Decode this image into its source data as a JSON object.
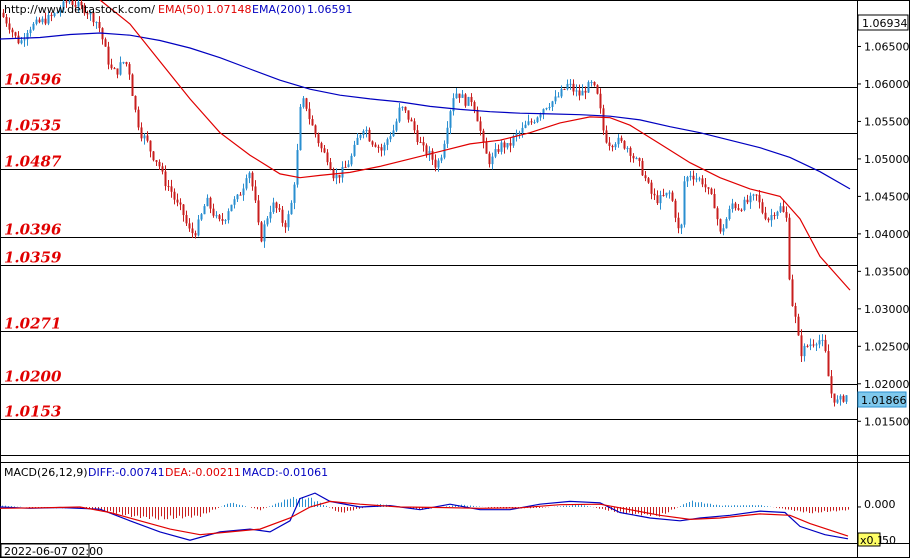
{
  "header": {
    "url": "http://www.deltastock.com/",
    "ema50_label": "EMA(50)",
    "ema50_value": "1.07148",
    "ema200_label": "EMA(200)",
    "ema200_value": "1.06591"
  },
  "price_panel": {
    "current_price": "1.06934",
    "last_close_label": "1.01866",
    "y_ticks": [
      "1.06500",
      "1.06000",
      "1.05500",
      "1.05000",
      "1.04500",
      "1.04000",
      "1.03500",
      "1.03000",
      "1.02500",
      "1.02000",
      "1.01500"
    ]
  },
  "levels": [
    {
      "label": "1.0596",
      "value": 1.0596
    },
    {
      "label": "1.0535",
      "value": 1.0535
    },
    {
      "label": "1.0487",
      "value": 1.0487
    },
    {
      "label": "1.0396",
      "value": 1.0396
    },
    {
      "label": "1.0359",
      "value": 1.0359
    },
    {
      "label": "1.0271",
      "value": 1.0271
    },
    {
      "label": "1.0200",
      "value": 1.02
    },
    {
      "label": "1.0153",
      "value": 1.0153
    }
  ],
  "macd_panel": {
    "title": "MACD(26,12,9)",
    "diff": "DIFF:-0.00741",
    "dea": "DEA:-0.00211",
    "macd": "MACD:-0.01061",
    "zero_tick": "0.000",
    "scale_badge": "x0.1",
    "scale_tick": "50"
  },
  "date_label": "2022-06-07 02:00",
  "colors": {
    "ema50": "#e00000",
    "ema200": "#0000c0",
    "bull": "#2a8fd0",
    "bear": "#c81e1e",
    "level_line": "#000000",
    "price_badge": "#7fc8ec"
  },
  "chart_data": {
    "type": "candlestick",
    "ylim": [
      1.0105,
      1.0712
    ],
    "y_ticks": [
      1.065,
      1.06,
      1.055,
      1.05,
      1.045,
      1.04,
      1.035,
      1.03,
      1.025,
      1.02,
      1.015
    ],
    "close_path": [
      [
        0,
        1.0695
      ],
      [
        8,
        1.068
      ],
      [
        16,
        1.066
      ],
      [
        20,
        1.0655
      ],
      [
        28,
        1.0675
      ],
      [
        36,
        1.068
      ],
      [
        44,
        1.0685
      ],
      [
        52,
        1.069
      ],
      [
        60,
        1.07
      ],
      [
        68,
        1.0712
      ],
      [
        76,
        1.0705
      ],
      [
        84,
        1.07
      ],
      [
        92,
        1.069
      ],
      [
        98,
        1.068
      ],
      [
        104,
        1.065
      ],
      [
        110,
        1.062
      ],
      [
        116,
        1.0615
      ],
      [
        122,
        1.063
      ],
      [
        128,
        1.0625
      ],
      [
        134,
        1.057
      ],
      [
        140,
        1.0535
      ],
      [
        146,
        1.0525
      ],
      [
        152,
        1.0505
      ],
      [
        158,
        1.0495
      ],
      [
        164,
        1.047
      ],
      [
        170,
        1.046
      ],
      [
        176,
        1.044
      ],
      [
        182,
        1.043
      ],
      [
        188,
        1.0405
      ],
      [
        194,
        1.04
      ],
      [
        200,
        1.042
      ],
      [
        206,
        1.0445
      ],
      [
        212,
        1.043
      ],
      [
        218,
        1.0415
      ],
      [
        224,
        1.042
      ],
      [
        230,
        1.044
      ],
      [
        236,
        1.0445
      ],
      [
        242,
        1.046
      ],
      [
        248,
        1.049
      ],
      [
        254,
        1.045
      ],
      [
        260,
        1.039
      ],
      [
        266,
        1.042
      ],
      [
        272,
        1.044
      ],
      [
        278,
        1.043
      ],
      [
        284,
        1.041
      ],
      [
        290,
        1.043
      ],
      [
        296,
        1.049
      ],
      [
        300,
        1.0565
      ],
      [
        304,
        1.058
      ],
      [
        310,
        1.055
      ],
      [
        316,
        1.053
      ],
      [
        322,
        1.051
      ],
      [
        328,
        1.05
      ],
      [
        334,
        1.0475
      ],
      [
        340,
        1.048
      ],
      [
        346,
        1.049
      ],
      [
        352,
        1.0505
      ],
      [
        358,
        1.053
      ],
      [
        364,
        1.0545
      ],
      [
        370,
        1.0525
      ],
      [
        376,
        1.052
      ],
      [
        382,
        1.051
      ],
      [
        388,
        1.053
      ],
      [
        394,
        1.054
      ],
      [
        400,
        1.057
      ],
      [
        406,
        1.056
      ],
      [
        412,
        1.0545
      ],
      [
        418,
        1.0525
      ],
      [
        424,
        1.051
      ],
      [
        430,
        1.0505
      ],
      [
        436,
        1.049
      ],
      [
        442,
        1.051
      ],
      [
        448,
        1.0555
      ],
      [
        454,
        1.059
      ],
      [
        460,
        1.0585
      ],
      [
        466,
        1.0575
      ],
      [
        472,
        1.058
      ],
      [
        478,
        1.055
      ],
      [
        484,
        1.051
      ],
      [
        490,
        1.0495
      ],
      [
        496,
        1.051
      ],
      [
        502,
        1.052
      ],
      [
        508,
        1.0515
      ],
      [
        514,
        1.053
      ],
      [
        520,
        1.0535
      ],
      [
        526,
        1.0545
      ],
      [
        532,
        1.055
      ],
      [
        538,
        1.056
      ],
      [
        544,
        1.057
      ],
      [
        550,
        1.0575
      ],
      [
        556,
        1.058
      ],
      [
        562,
        1.059
      ],
      [
        568,
        1.06
      ],
      [
        574,
        1.059
      ],
      [
        580,
        1.0585
      ],
      [
        586,
        1.0595
      ],
      [
        592,
        1.06
      ],
      [
        598,
        1.058
      ],
      [
        604,
        1.053
      ],
      [
        610,
        1.052
      ],
      [
        616,
        1.0525
      ],
      [
        622,
        1.052
      ],
      [
        628,
        1.0515
      ],
      [
        634,
        1.05
      ],
      [
        640,
        1.049
      ],
      [
        646,
        1.047
      ],
      [
        652,
        1.045
      ],
      [
        658,
        1.0445
      ],
      [
        664,
        1.045
      ],
      [
        670,
        1.0455
      ],
      [
        676,
        1.042
      ],
      [
        680,
        1.039
      ],
      [
        684,
        1.047
      ],
      [
        690,
        1.048
      ],
      [
        696,
        1.0475
      ],
      [
        702,
        1.047
      ],
      [
        708,
        1.0455
      ],
      [
        714,
        1.044
      ],
      [
        720,
        1.04
      ],
      [
        726,
        1.042
      ],
      [
        732,
        1.044
      ],
      [
        738,
        1.0435
      ],
      [
        744,
        1.044
      ],
      [
        750,
        1.0445
      ],
      [
        756,
        1.045
      ],
      [
        762,
        1.043
      ],
      [
        768,
        1.042
      ],
      [
        774,
        1.043
      ],
      [
        780,
        1.0435
      ],
      [
        786,
        1.042
      ],
      [
        790,
        1.032
      ],
      [
        796,
        1.028
      ],
      [
        800,
        1.024
      ],
      [
        806,
        1.025
      ],
      [
        812,
        1.0255
      ],
      [
        818,
        1.026
      ],
      [
        824,
        1.025
      ],
      [
        830,
        1.019
      ],
      [
        836,
        1.0175
      ],
      [
        842,
        1.018
      ],
      [
        848,
        1.0187
      ]
    ],
    "ema50_path": [
      [
        100,
        1.0712
      ],
      [
        130,
        1.068
      ],
      [
        160,
        1.063
      ],
      [
        190,
        1.058
      ],
      [
        220,
        1.0535
      ],
      [
        250,
        1.0505
      ],
      [
        280,
        1.048
      ],
      [
        300,
        1.0475
      ],
      [
        320,
        1.0478
      ],
      [
        350,
        1.0482
      ],
      [
        380,
        1.049
      ],
      [
        410,
        1.05
      ],
      [
        440,
        1.051
      ],
      [
        470,
        1.052
      ],
      [
        500,
        1.0525
      ],
      [
        530,
        1.0535
      ],
      [
        560,
        1.0548
      ],
      [
        590,
        1.0556
      ],
      [
        610,
        1.0555
      ],
      [
        630,
        1.0545
      ],
      [
        660,
        1.052
      ],
      [
        690,
        1.0495
      ],
      [
        720,
        1.0475
      ],
      [
        750,
        1.046
      ],
      [
        780,
        1.045
      ],
      [
        800,
        1.042
      ],
      [
        820,
        1.037
      ],
      [
        850,
        1.0325
      ]
    ],
    "ema200_path": [
      [
        0,
        1.066
      ],
      [
        40,
        1.0662
      ],
      [
        70,
        1.0666
      ],
      [
        100,
        1.0668
      ],
      [
        130,
        1.0665
      ],
      [
        160,
        1.0658
      ],
      [
        190,
        1.0648
      ],
      [
        220,
        1.0635
      ],
      [
        250,
        1.062
      ],
      [
        280,
        1.0605
      ],
      [
        310,
        1.0593
      ],
      [
        340,
        1.0585
      ],
      [
        370,
        1.058
      ],
      [
        400,
        1.0576
      ],
      [
        430,
        1.057
      ],
      [
        460,
        1.0566
      ],
      [
        490,
        1.0563
      ],
      [
        520,
        1.0561
      ],
      [
        550,
        1.056
      ],
      [
        580,
        1.0559
      ],
      [
        610,
        1.0557
      ],
      [
        640,
        1.0552
      ],
      [
        670,
        1.0543
      ],
      [
        700,
        1.0535
      ],
      [
        730,
        1.0525
      ],
      [
        760,
        1.0515
      ],
      [
        790,
        1.0502
      ],
      [
        820,
        1.0483
      ],
      [
        850,
        1.046
      ]
    ],
    "macd": {
      "ylim": [
        -0.013,
        0.009
      ],
      "diff_path": [
        [
          0,
          0.0
        ],
        [
          30,
          -0.0005
        ],
        [
          60,
          -0.0002
        ],
        [
          100,
          -0.0008
        ],
        [
          130,
          -0.005
        ],
        [
          160,
          -0.009
        ],
        [
          190,
          -0.012
        ],
        [
          220,
          -0.009
        ],
        [
          250,
          -0.008
        ],
        [
          270,
          -0.009
        ],
        [
          290,
          -0.005
        ],
        [
          300,
          0.003
        ],
        [
          315,
          0.005
        ],
        [
          330,
          0.002
        ],
        [
          360,
          0.0
        ],
        [
          390,
          0.0005
        ],
        [
          420,
          -0.001
        ],
        [
          450,
          0.001
        ],
        [
          480,
          -0.001
        ],
        [
          510,
          -0.001
        ],
        [
          540,
          0.001
        ],
        [
          570,
          0.002
        ],
        [
          600,
          0.0015
        ],
        [
          620,
          -0.002
        ],
        [
          650,
          -0.004
        ],
        [
          680,
          -0.005
        ],
        [
          700,
          -0.004
        ],
        [
          730,
          -0.003
        ],
        [
          760,
          -0.0015
        ],
        [
          785,
          -0.002
        ],
        [
          800,
          -0.007
        ],
        [
          825,
          -0.01
        ],
        [
          848,
          -0.0115
        ]
      ],
      "dea_path": [
        [
          0,
          -0.0005
        ],
        [
          40,
          -0.0003
        ],
        [
          80,
          0.0
        ],
        [
          110,
          -0.002
        ],
        [
          140,
          -0.005
        ],
        [
          170,
          -0.008
        ],
        [
          200,
          -0.01
        ],
        [
          230,
          -0.009
        ],
        [
          260,
          -0.008
        ],
        [
          290,
          -0.004
        ],
        [
          310,
          0.0
        ],
        [
          330,
          0.002
        ],
        [
          360,
          0.001
        ],
        [
          400,
          0.0
        ],
        [
          440,
          -0.0002
        ],
        [
          480,
          -0.0005
        ],
        [
          520,
          -0.0003
        ],
        [
          560,
          0.0008
        ],
        [
          600,
          0.001
        ],
        [
          630,
          -0.001
        ],
        [
          660,
          -0.003
        ],
        [
          690,
          -0.0045
        ],
        [
          720,
          -0.004
        ],
        [
          760,
          -0.0025
        ],
        [
          790,
          -0.003
        ],
        [
          810,
          -0.006
        ],
        [
          848,
          -0.0105
        ]
      ],
      "hist_path": [
        [
          0,
          0.0005
        ],
        [
          40,
          -0.0004
        ],
        [
          80,
          -0.0004
        ],
        [
          100,
          -0.001
        ],
        [
          130,
          -0.003
        ],
        [
          160,
          -0.004
        ],
        [
          200,
          -0.003
        ],
        [
          230,
          0.0015
        ],
        [
          260,
          -0.001
        ],
        [
          290,
          0.003
        ],
        [
          310,
          0.003
        ],
        [
          340,
          -0.002
        ],
        [
          380,
          0.001
        ],
        [
          420,
          -0.001
        ],
        [
          460,
          0.0008
        ],
        [
          500,
          -0.0006
        ],
        [
          540,
          -0.0003
        ],
        [
          580,
          0.0008
        ],
        [
          620,
          -0.002
        ],
        [
          660,
          -0.003
        ],
        [
          690,
          0.002
        ],
        [
          720,
          0.0005
        ],
        [
          760,
          0.0006
        ],
        [
          790,
          -0.001
        ],
        [
          810,
          -0.002
        ],
        [
          848,
          -0.001
        ]
      ]
    }
  }
}
